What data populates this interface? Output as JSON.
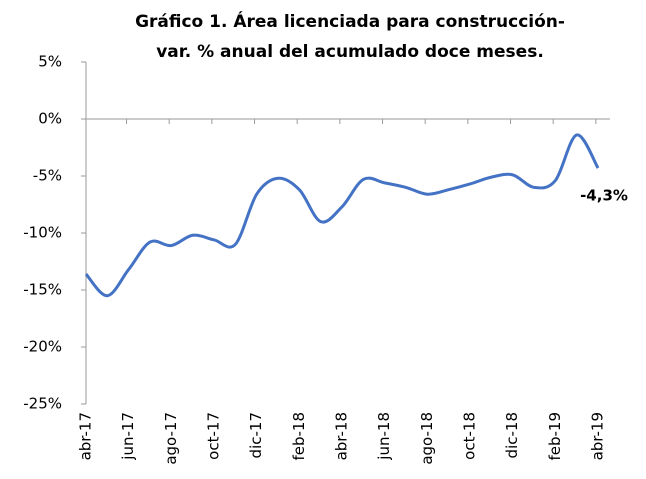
{
  "chart_data": {
    "type": "line",
    "title": "Gráfico 1. Área licenciada para construcción-",
    "subtitle": "var. % anual del acumulado doce meses.",
    "categories": [
      "abr-17",
      null,
      "jun-17",
      null,
      "ago-17",
      null,
      "oct-17",
      null,
      "dic-17",
      null,
      "feb-18",
      null,
      "abr-18",
      null,
      "jun-18",
      null,
      "ago-18",
      null,
      "oct-18",
      null,
      "dic-18",
      null,
      "feb-19",
      null,
      "abr-19"
    ],
    "series": [
      {
        "name": "Área licenciada",
        "color": "#4472c4",
        "values": [
          -13.6,
          -15.5,
          -13.2,
          -10.8,
          -11.1,
          -10.2,
          -10.6,
          -11.0,
          -6.6,
          -5.2,
          -6.2,
          -9.0,
          -7.7,
          -5.3,
          -5.6,
          -6.0,
          -6.6,
          -6.2,
          -5.7,
          -5.1,
          -4.9,
          -6.0,
          -5.4,
          -1.4,
          -4.3
        ],
        "value_labels": [
          null,
          null,
          null,
          null,
          null,
          null,
          null,
          null,
          null,
          null,
          null,
          null,
          null,
          null,
          null,
          null,
          null,
          null,
          null,
          null,
          null,
          null,
          null,
          null,
          "-4,3%"
        ]
      }
    ],
    "ylim": [
      -25,
      5
    ],
    "yticks": [
      {
        "value": -25,
        "label": "-25%"
      },
      {
        "value": -20,
        "label": "-20%"
      },
      {
        "value": -15,
        "label": "-15%"
      },
      {
        "value": -10,
        "label": "-10%"
      },
      {
        "value": -5,
        "label": "-5%"
      },
      {
        "value": 0,
        "label": "0%"
      },
      {
        "value": 5,
        "label": "5%"
      }
    ],
    "grid": false
  }
}
